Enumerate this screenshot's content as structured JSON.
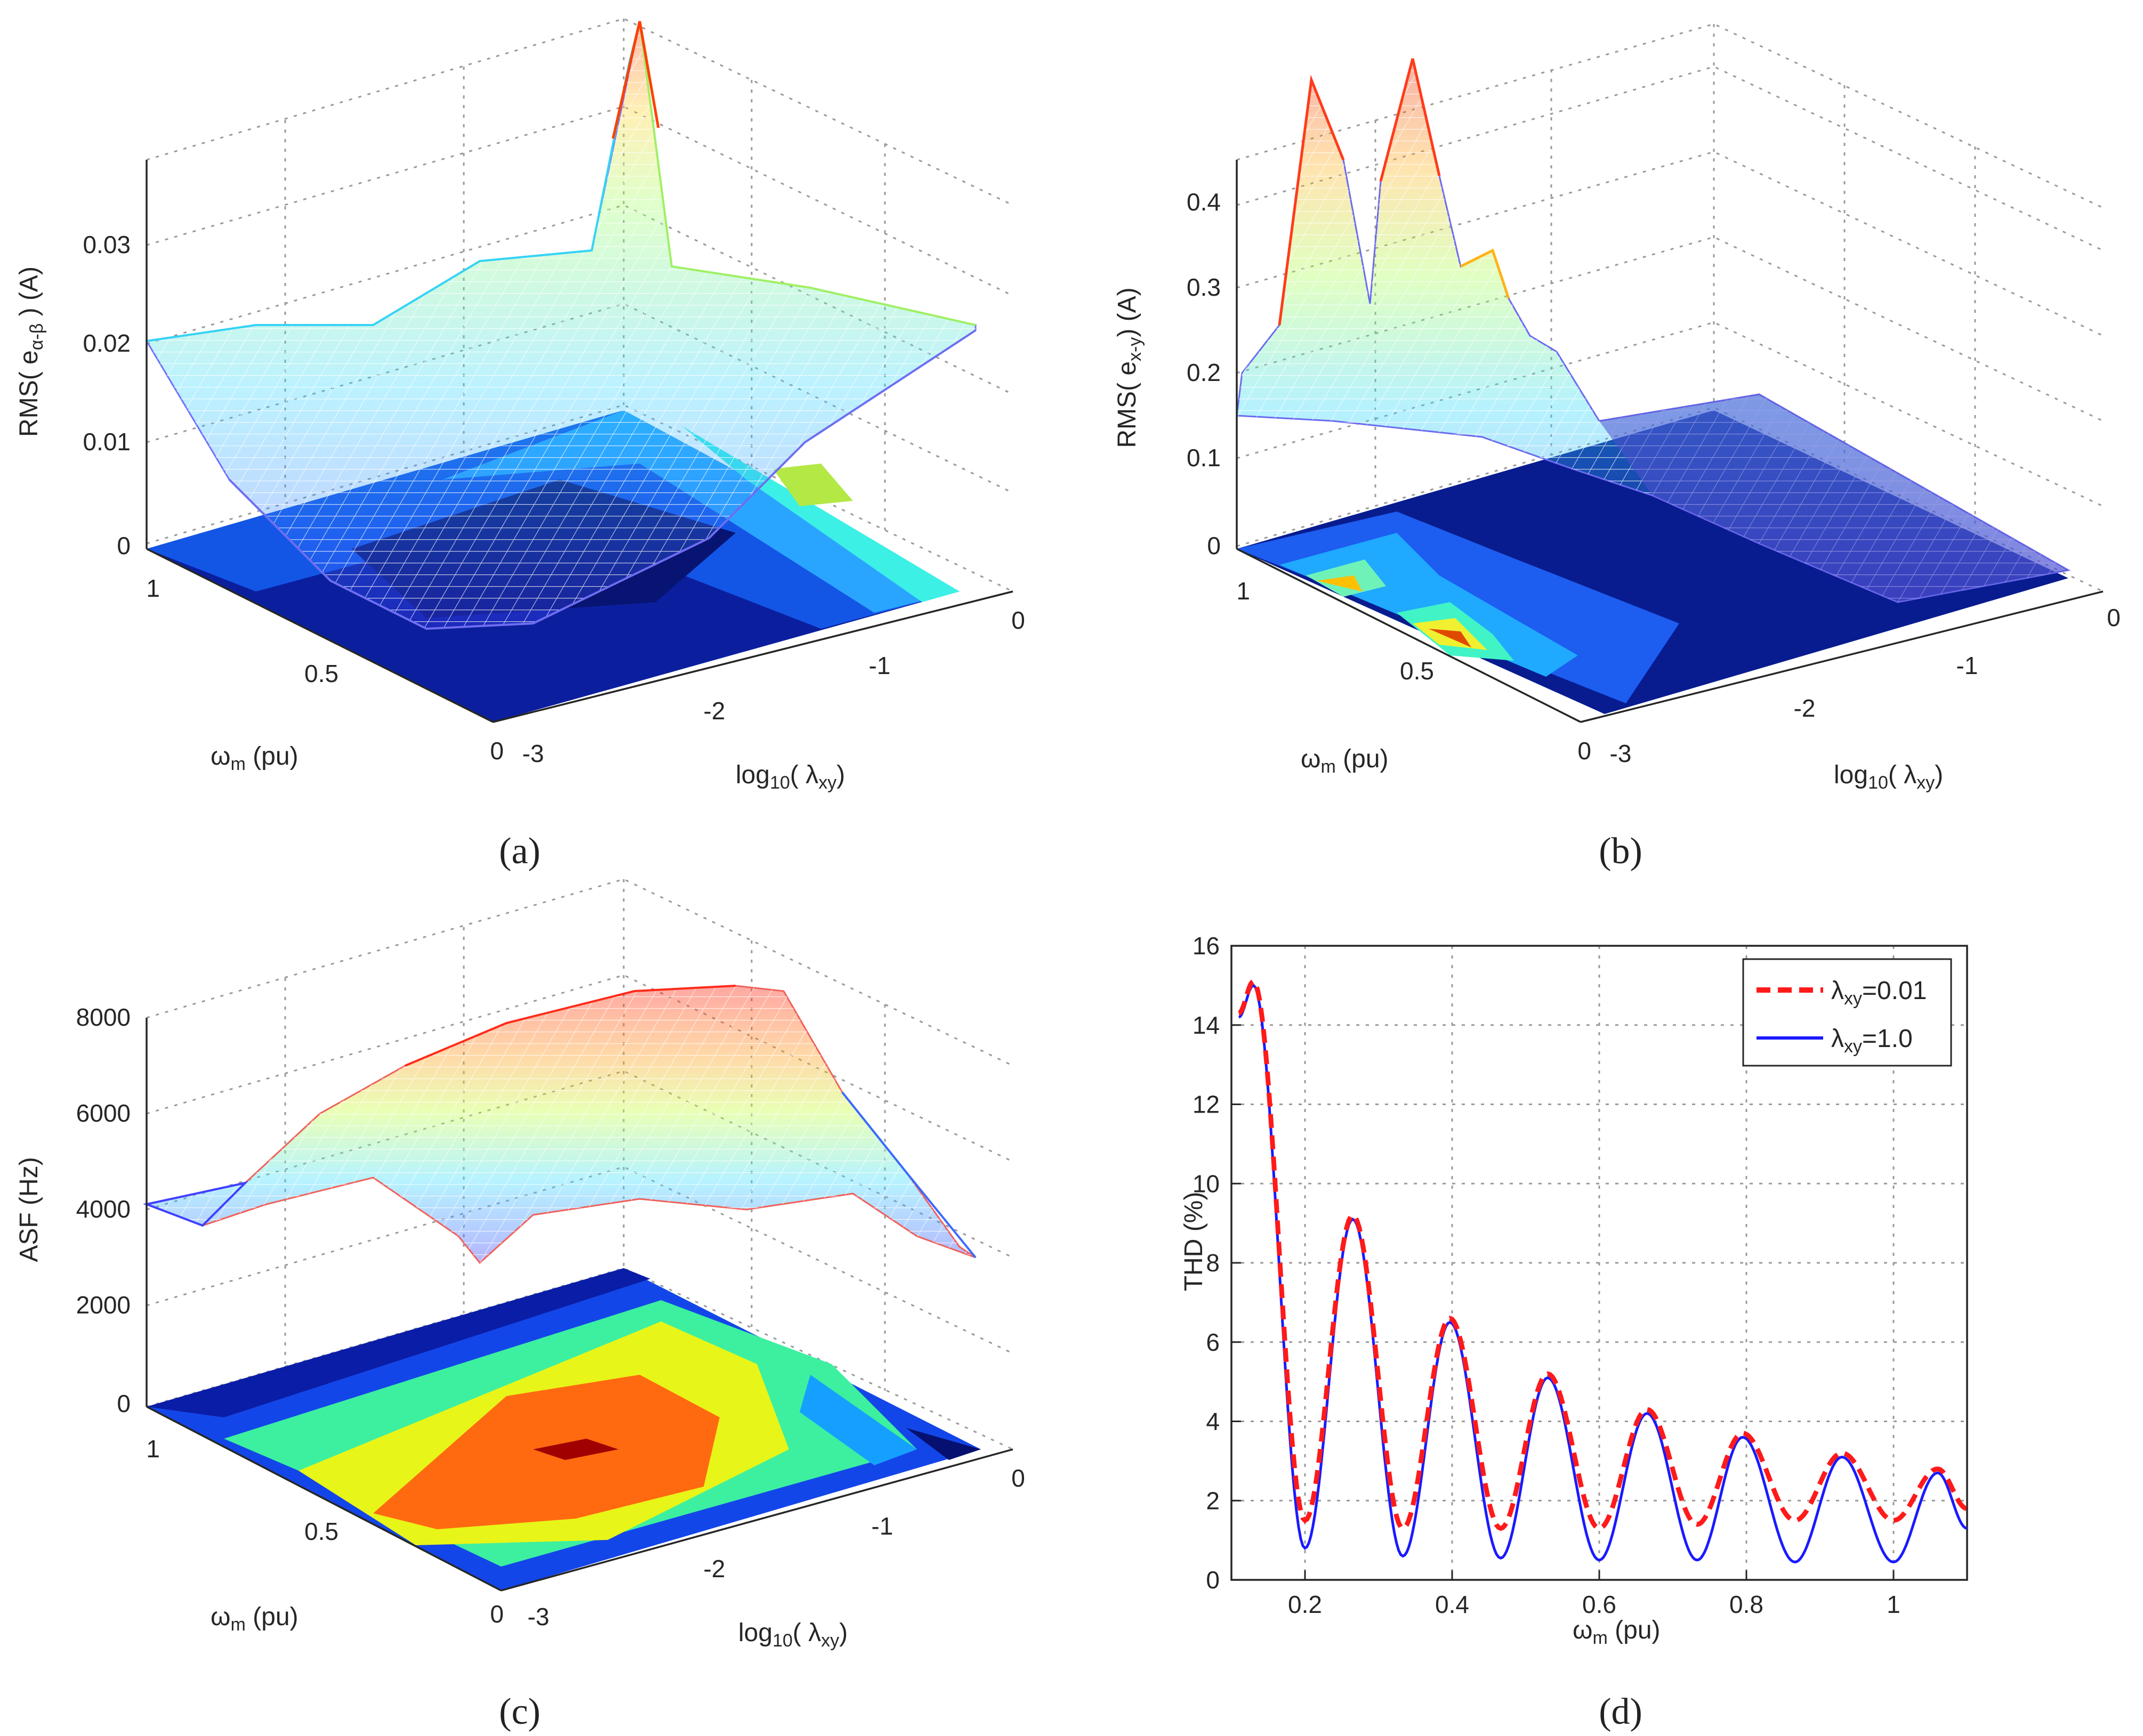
{
  "figure": {
    "captions": [
      "(a)",
      "(b)",
      "(c)",
      "(d)"
    ]
  },
  "chart_data": [
    {
      "id": "a",
      "type": "surface3d",
      "zlabel": "RMS(eα-β) (A)",
      "zlabel_main": "RMS( e",
      "zlabel_sub": "α-β",
      "zlabel_tail": " ) (A)",
      "xlabel_main": "log",
      "xlabel_sub": "10",
      "xlabel_tail": "( λ",
      "xlabel_sub2": "xy",
      "xlabel_end": ")",
      "ylabel_main": "ω",
      "ylabel_sub": "m",
      "ylabel_tail": " (pu)",
      "z_ticks": [
        "0",
        "0.01",
        "0.02",
        "0.03"
      ],
      "x_ticks": [
        "-3",
        "-2",
        "-1",
        "0"
      ],
      "y_ticks": [
        "0",
        "0.5",
        "1"
      ],
      "x_range": [
        -3,
        0
      ],
      "y_range": [
        0,
        1.1
      ],
      "z_range": [
        0,
        0.035
      ],
      "has_contour_base": true
    },
    {
      "id": "b",
      "type": "surface3d",
      "zlabel_main": "RMS( e",
      "zlabel_sub": "x-y",
      "zlabel_tail": ") (A)",
      "xlabel_main": "log",
      "xlabel_sub": "10",
      "xlabel_tail": "( λ",
      "xlabel_sub2": "xy",
      "xlabel_end": ")",
      "ylabel_main": "ω",
      "ylabel_sub": "m",
      "ylabel_tail": " (pu)",
      "z_ticks": [
        "0",
        "0.1",
        "0.2",
        "0.3",
        "0.4"
      ],
      "x_ticks": [
        "-3",
        "-2",
        "-1",
        "0"
      ],
      "y_ticks": [
        "0",
        "0.5",
        "1"
      ],
      "x_range": [
        -3,
        0
      ],
      "y_range": [
        0,
        1.1
      ],
      "z_range": [
        0,
        0.45
      ],
      "has_contour_base": true
    },
    {
      "id": "c",
      "type": "surface3d",
      "zlabel_main": "ASF (Hz)",
      "xlabel_main": "log",
      "xlabel_sub": "10",
      "xlabel_tail": "( λ",
      "xlabel_sub2": "xy",
      "xlabel_end": ")",
      "ylabel_main": "ω",
      "ylabel_sub": "m",
      "ylabel_tail": " (pu)",
      "z_ticks": [
        "0",
        "2000",
        "4000",
        "6000",
        "8000"
      ],
      "x_ticks": [
        "-3",
        "-2",
        "-1",
        "0"
      ],
      "y_ticks": [
        "0",
        "0.5",
        "1"
      ],
      "x_range": [
        -3,
        0
      ],
      "y_range": [
        0,
        1.1
      ],
      "z_range": [
        0,
        8000
      ],
      "has_contour_base": true
    },
    {
      "id": "d",
      "type": "line",
      "xlabel_main": "ω",
      "xlabel_sub": "m",
      "xlabel_tail": " (pu)",
      "ylabel": "THD (%)",
      "xlim": [
        0.1,
        1.1
      ],
      "ylim": [
        0,
        16
      ],
      "x_ticks": [
        0.2,
        0.4,
        0.6,
        0.8,
        1.0
      ],
      "x_tick_labels": [
        "0.2",
        "0.4",
        "0.6",
        "0.8",
        "1"
      ],
      "y_ticks": [
        0,
        2,
        4,
        6,
        8,
        10,
        12,
        14,
        16
      ],
      "y_tick_labels": [
        "0",
        "2",
        "4",
        "6",
        "8",
        "10",
        "12",
        "14",
        "16"
      ],
      "grid": true,
      "legend_position": "top-right",
      "series": [
        {
          "name": "λxy=0.01",
          "legend_main": "λ",
          "legend_sub": "xy",
          "legend_tail": "=0.01",
          "color": "#ff1a1a",
          "dash": "dashed",
          "minima": [
            [
              0.2,
              1.5
            ],
            [
              0.333,
              1.3
            ],
            [
              0.466,
              1.3
            ],
            [
              0.6,
              1.3
            ],
            [
              0.733,
              1.4
            ],
            [
              0.866,
              1.5
            ],
            [
              1.0,
              1.5
            ],
            [
              1.1,
              1.8
            ]
          ],
          "maxima": [
            [
              0.13,
              15.1
            ],
            [
              0.265,
              9.2
            ],
            [
              0.397,
              6.6
            ],
            [
              0.53,
              5.2
            ],
            [
              0.665,
              4.3
            ],
            [
              0.795,
              3.7
            ],
            [
              0.93,
              3.2
            ],
            [
              1.06,
              2.8
            ]
          ]
        },
        {
          "name": "λxy=1.0",
          "legend_main": "λ",
          "legend_sub": "xy",
          "legend_tail": "=1.0",
          "color": "#1a1aff",
          "dash": "solid",
          "minima": [
            [
              0.2,
              0.8
            ],
            [
              0.333,
              0.6
            ],
            [
              0.466,
              0.55
            ],
            [
              0.6,
              0.5
            ],
            [
              0.733,
              0.5
            ],
            [
              0.866,
              0.45
            ],
            [
              1.0,
              0.45
            ],
            [
              1.1,
              1.3
            ]
          ],
          "maxima": [
            [
              0.13,
              15.0
            ],
            [
              0.265,
              9.1
            ],
            [
              0.397,
              6.5
            ],
            [
              0.53,
              5.1
            ],
            [
              0.665,
              4.2
            ],
            [
              0.795,
              3.6
            ],
            [
              0.93,
              3.1
            ],
            [
              1.06,
              2.7
            ]
          ]
        }
      ],
      "start": [
        [
          0.11,
          14.3
        ],
        [
          0.11,
          14.2
        ]
      ]
    }
  ]
}
